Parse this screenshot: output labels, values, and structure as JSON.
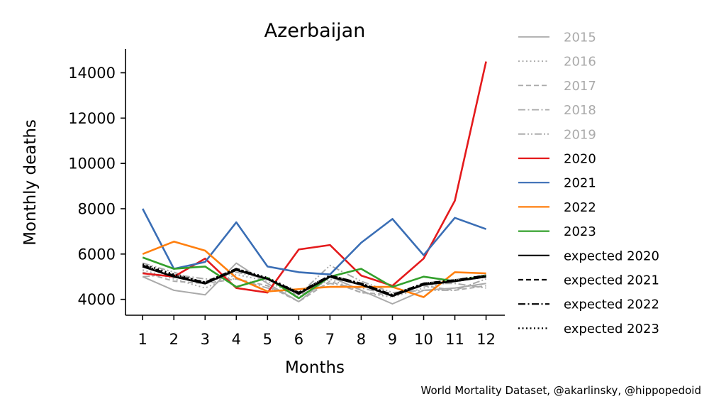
{
  "chart_data": {
    "type": "line",
    "title": "Azerbaijan",
    "xlabel": "Months",
    "ylabel": "Monthly deaths",
    "x": [
      1,
      2,
      3,
      4,
      5,
      6,
      7,
      8,
      9,
      10,
      11,
      12
    ],
    "x_ticks": [
      "1",
      "2",
      "3",
      "4",
      "5",
      "6",
      "7",
      "8",
      "9",
      "10",
      "11",
      "12"
    ],
    "y_ticks": [
      4000,
      6000,
      8000,
      10000,
      12000,
      14000
    ],
    "y_tick_labels": [
      "4000",
      "6000",
      "8000",
      "10000",
      "12000",
      "14000"
    ],
    "ylim": [
      3300,
      15050
    ],
    "xlim": [
      0.45,
      12.6
    ],
    "grid": false,
    "legend_position": "right, outside plot",
    "source": "World Mortality Dataset, @akarlinsky, @hippopedoid",
    "series": [
      {
        "name": "2015",
        "color": "#aaaaaa",
        "dash": "solid",
        "width": 2,
        "values": [
          5000,
          4400,
          4200,
          5600,
          4700,
          3900,
          5000,
          4400,
          3800,
          4400,
          4500,
          4700
        ]
      },
      {
        "name": "2016",
        "color": "#aaaaaa",
        "dash": "dotted",
        "width": 2,
        "values": [
          5300,
          4900,
          4500,
          5100,
          4800,
          4100,
          4900,
          4300,
          4100,
          4500,
          4800,
          5100
        ]
      },
      {
        "name": "2017",
        "color": "#aaaaaa",
        "dash": "dashed",
        "width": 2,
        "values": [
          5200,
          4800,
          4700,
          4900,
          4600,
          3900,
          4800,
          4300,
          4200,
          4600,
          4400,
          4600
        ]
      },
      {
        "name": "2018",
        "color": "#aaaaaa",
        "dash": "dashdot",
        "width": 2,
        "values": [
          5000,
          5100,
          4900,
          4900,
          4500,
          4200,
          4700,
          4500,
          4200,
          4700,
          4700,
          4500
        ]
      },
      {
        "name": "2019",
        "color": "#aaaaaa",
        "dash": "dashdotdot",
        "width": 2,
        "values": [
          5600,
          5200,
          4700,
          5200,
          4900,
          4200,
          5500,
          4800,
          4300,
          4400,
          4400,
          4900
        ]
      },
      {
        "name": "2020",
        "color": "#e41a1c",
        "dash": "solid",
        "width": 2.6,
        "values": [
          5150,
          5000,
          5800,
          4500,
          4300,
          6200,
          6400,
          5050,
          4600,
          5800,
          8350,
          14500
        ]
      },
      {
        "name": "2021",
        "color": "#3a6eb5",
        "dash": "solid",
        "width": 2.6,
        "values": [
          8000,
          5350,
          5650,
          7400,
          5450,
          5200,
          5100,
          6500,
          7550,
          5950,
          7600,
          7100
        ]
      },
      {
        "name": "2022",
        "color": "#ff7f0e",
        "dash": "solid",
        "width": 2.6,
        "values": [
          6000,
          6550,
          6150,
          4950,
          4350,
          4450,
          4550,
          4550,
          4550,
          4100,
          5200,
          5150
        ]
      },
      {
        "name": "2023",
        "color": "#33a02c",
        "dash": "solid",
        "width": 2.6,
        "values": [
          5850,
          5350,
          5450,
          4550,
          4950,
          4050,
          5000,
          5350,
          4550,
          5000,
          4800,
          5050
        ]
      },
      {
        "name": "expected 2020",
        "color": "#000000",
        "dash": "solid",
        "width": 2.6,
        "values": [
          5450,
          5000,
          4700,
          5300,
          4900,
          4250,
          5000,
          4650,
          4150,
          4650,
          4800,
          5000
        ]
      },
      {
        "name": "expected 2021",
        "color": "#000000",
        "dash": "dashed",
        "width": 2.6,
        "values": [
          5450,
          5000,
          4700,
          5300,
          4900,
          4250,
          5000,
          4650,
          4150,
          4650,
          4800,
          5000
        ]
      },
      {
        "name": "expected 2022",
        "color": "#000000",
        "dash": "dashdot",
        "width": 2.6,
        "values": [
          5500,
          5050,
          4750,
          5350,
          4900,
          4300,
          5050,
          4700,
          4200,
          4700,
          4850,
          5050
        ]
      },
      {
        "name": "expected 2023",
        "color": "#000000",
        "dash": "dotted",
        "width": 2.6,
        "values": [
          5550,
          5100,
          4750,
          5350,
          4950,
          4300,
          5050,
          4700,
          4200,
          4700,
          4850,
          5050
        ]
      }
    ],
    "legend": [
      {
        "label": "2015",
        "text_color": "#aaaaaa"
      },
      {
        "label": "2016",
        "text_color": "#aaaaaa"
      },
      {
        "label": "2017",
        "text_color": "#aaaaaa"
      },
      {
        "label": "2018",
        "text_color": "#aaaaaa"
      },
      {
        "label": "2019",
        "text_color": "#aaaaaa"
      },
      {
        "label": "2020",
        "text_color": "#000000"
      },
      {
        "label": "2021",
        "text_color": "#000000"
      },
      {
        "label": "2022",
        "text_color": "#000000"
      },
      {
        "label": "2023",
        "text_color": "#000000"
      },
      {
        "label": "expected 2020",
        "text_color": "#000000"
      },
      {
        "label": "expected 2021",
        "text_color": "#000000"
      },
      {
        "label": "expected 2022",
        "text_color": "#000000"
      },
      {
        "label": "expected 2023",
        "text_color": "#000000"
      }
    ]
  }
}
